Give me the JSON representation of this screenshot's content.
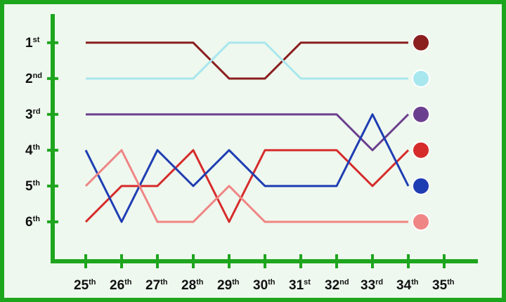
{
  "chart_data": {
    "type": "line",
    "categories": [
      "25th",
      "26th",
      "27th",
      "28th",
      "29th",
      "30th",
      "31st",
      "32nd",
      "33rd",
      "34th",
      "35th"
    ],
    "series": [
      {
        "color": "#8b1e1e",
        "values": [
          1,
          1,
          1,
          1,
          2,
          2,
          1,
          1,
          1,
          1,
          null
        ]
      },
      {
        "color": "#a9e7ee",
        "values": [
          2,
          2,
          2,
          2,
          1,
          1,
          2,
          2,
          2,
          2,
          null
        ]
      },
      {
        "color": "#6b3f8f",
        "values": [
          3,
          3,
          3,
          3,
          3,
          3,
          3,
          3,
          4,
          3,
          null
        ]
      },
      {
        "color": "#d62b2b",
        "values": [
          6,
          5,
          5,
          4,
          6,
          4,
          4,
          4,
          5,
          4,
          null
        ]
      },
      {
        "color": "#1f3db3",
        "values": [
          4,
          6,
          4,
          5,
          4,
          5,
          5,
          5,
          3,
          5,
          null
        ]
      },
      {
        "color": "#f08585",
        "values": [
          5,
          4,
          6,
          6,
          5,
          6,
          6,
          6,
          6,
          6,
          null
        ]
      }
    ],
    "ylim": [
      0.2,
      7.1
    ],
    "invert_y": true,
    "yticks": [
      {
        "value": 1,
        "label": "1st"
      },
      {
        "value": 2,
        "label": "2nd"
      },
      {
        "value": 3,
        "label": "3rd"
      },
      {
        "value": 4,
        "label": "4th"
      },
      {
        "value": 5,
        "label": "5th"
      },
      {
        "value": 6,
        "label": "6th"
      }
    ],
    "axis_color": "#1ea51e"
  }
}
